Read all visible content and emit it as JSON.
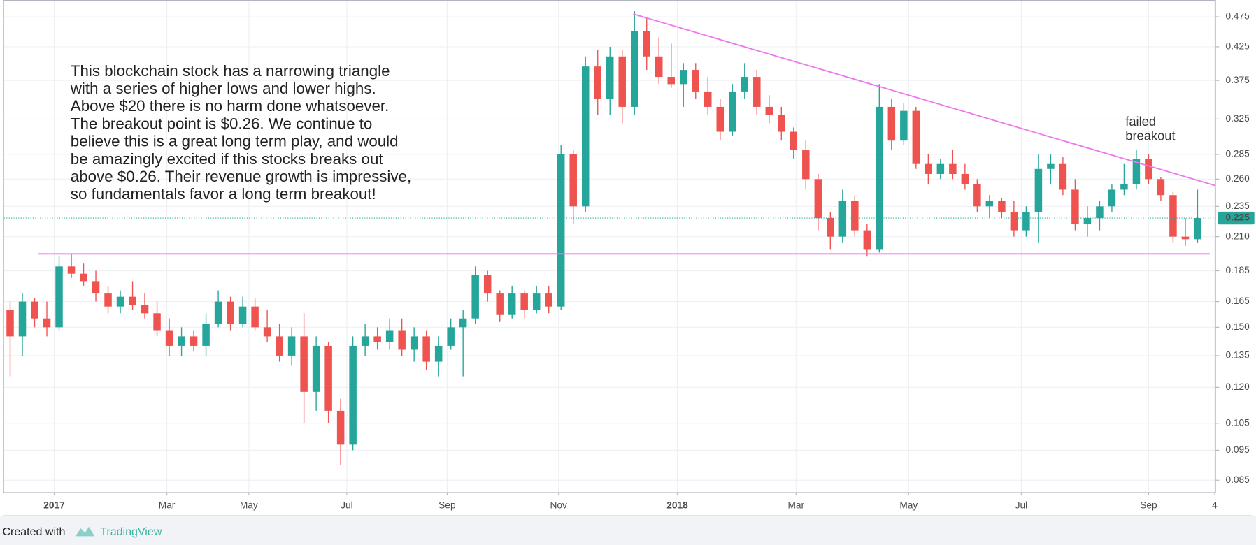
{
  "chart_data": {
    "type": "candlestick",
    "x": [
      0,
      1,
      2,
      3,
      4,
      5,
      6,
      7,
      8,
      9,
      10,
      11,
      12,
      13,
      14,
      15,
      16,
      17,
      18,
      19,
      20,
      21,
      22,
      23,
      24,
      25,
      26,
      27,
      28,
      29,
      30,
      31,
      32,
      33,
      34,
      35,
      36,
      37,
      38,
      39,
      40,
      41,
      42,
      43,
      44,
      45,
      46,
      47,
      48,
      49,
      50,
      51,
      52,
      53,
      54,
      55,
      56,
      57,
      58,
      59,
      60,
      61,
      62,
      63,
      64,
      65,
      66,
      67,
      68,
      69,
      70,
      71,
      72,
      73,
      74,
      75,
      76,
      77,
      78,
      79,
      80,
      81,
      82,
      83,
      84,
      85,
      86,
      87,
      88,
      89,
      90,
      91,
      92,
      93,
      94,
      95,
      96,
      97
    ],
    "open": [
      0.16,
      0.145,
      0.165,
      0.155,
      0.15,
      0.188,
      0.183,
      0.178,
      0.17,
      0.162,
      0.168,
      0.163,
      0.158,
      0.148,
      0.14,
      0.145,
      0.14,
      0.152,
      0.165,
      0.152,
      0.162,
      0.15,
      0.145,
      0.135,
      0.145,
      0.118,
      0.14,
      0.11,
      0.097,
      0.14,
      0.145,
      0.142,
      0.148,
      0.138,
      0.145,
      0.132,
      0.14,
      0.15,
      0.155,
      0.182,
      0.17,
      0.157,
      0.17,
      0.16,
      0.17,
      0.162,
      0.285,
      0.235,
      0.395,
      0.35,
      0.41,
      0.34,
      0.45,
      0.41,
      0.38,
      0.37,
      0.39,
      0.36,
      0.34,
      0.31,
      0.36,
      0.38,
      0.34,
      0.33,
      0.31,
      0.29,
      0.26,
      0.225,
      0.21,
      0.24,
      0.215,
      0.2,
      0.34,
      0.3,
      0.335,
      0.275,
      0.265,
      0.275,
      0.265,
      0.255,
      0.235,
      0.24,
      0.23,
      0.215,
      0.23,
      0.27,
      0.275,
      0.25,
      0.22,
      0.225,
      0.235,
      0.25,
      0.255,
      0.28,
      0.26,
      0.245,
      0.21,
      0.208
    ],
    "high": [
      0.165,
      0.17,
      0.167,
      0.165,
      0.195,
      0.197,
      0.19,
      0.185,
      0.175,
      0.172,
      0.178,
      0.17,
      0.165,
      0.155,
      0.15,
      0.148,
      0.158,
      0.172,
      0.168,
      0.168,
      0.167,
      0.16,
      0.152,
      0.15,
      0.158,
      0.145,
      0.142,
      0.115,
      0.145,
      0.152,
      0.15,
      0.155,
      0.155,
      0.15,
      0.148,
      0.145,
      0.155,
      0.16,
      0.188,
      0.185,
      0.172,
      0.175,
      0.172,
      0.175,
      0.175,
      0.295,
      0.29,
      0.41,
      0.42,
      0.425,
      0.42,
      0.485,
      0.475,
      0.44,
      0.43,
      0.4,
      0.4,
      0.38,
      0.35,
      0.37,
      0.4,
      0.39,
      0.355,
      0.34,
      0.315,
      0.3,
      0.265,
      0.23,
      0.25,
      0.245,
      0.22,
      0.37,
      0.35,
      0.345,
      0.34,
      0.285,
      0.28,
      0.29,
      0.275,
      0.26,
      0.245,
      0.242,
      0.24,
      0.235,
      0.285,
      0.285,
      0.282,
      0.26,
      0.235,
      0.24,
      0.255,
      0.275,
      0.29,
      0.285,
      0.262,
      0.248,
      0.225,
      0.25
    ],
    "low": [
      0.125,
      0.135,
      0.15,
      0.145,
      0.148,
      0.18,
      0.175,
      0.165,
      0.158,
      0.158,
      0.16,
      0.155,
      0.145,
      0.135,
      0.135,
      0.137,
      0.135,
      0.15,
      0.148,
      0.15,
      0.148,
      0.142,
      0.132,
      0.13,
      0.105,
      0.11,
      0.105,
      0.09,
      0.095,
      0.135,
      0.138,
      0.138,
      0.135,
      0.132,
      0.128,
      0.125,
      0.138,
      0.125,
      0.152,
      0.165,
      0.153,
      0.155,
      0.155,
      0.158,
      0.158,
      0.16,
      0.22,
      0.23,
      0.33,
      0.33,
      0.32,
      0.33,
      0.39,
      0.37,
      0.365,
      0.34,
      0.35,
      0.33,
      0.3,
      0.305,
      0.35,
      0.33,
      0.32,
      0.3,
      0.28,
      0.25,
      0.215,
      0.2,
      0.205,
      0.21,
      0.195,
      0.198,
      0.29,
      0.295,
      0.27,
      0.255,
      0.26,
      0.26,
      0.25,
      0.23,
      0.225,
      0.225,
      0.21,
      0.21,
      0.205,
      0.255,
      0.245,
      0.215,
      0.21,
      0.215,
      0.23,
      0.245,
      0.25,
      0.255,
      0.24,
      0.205,
      0.203,
      0.205
    ],
    "close": [
      0.145,
      0.165,
      0.155,
      0.15,
      0.188,
      0.183,
      0.178,
      0.17,
      0.162,
      0.168,
      0.163,
      0.158,
      0.148,
      0.14,
      0.145,
      0.14,
      0.152,
      0.165,
      0.152,
      0.162,
      0.15,
      0.145,
      0.135,
      0.145,
      0.118,
      0.14,
      0.11,
      0.097,
      0.14,
      0.145,
      0.142,
      0.148,
      0.138,
      0.145,
      0.132,
      0.14,
      0.15,
      0.155,
      0.182,
      0.17,
      0.157,
      0.17,
      0.16,
      0.17,
      0.162,
      0.285,
      0.235,
      0.395,
      0.35,
      0.41,
      0.34,
      0.45,
      0.41,
      0.38,
      0.37,
      0.39,
      0.36,
      0.34,
      0.31,
      0.36,
      0.38,
      0.34,
      0.33,
      0.31,
      0.29,
      0.26,
      0.225,
      0.21,
      0.24,
      0.215,
      0.2,
      0.34,
      0.3,
      0.335,
      0.275,
      0.265,
      0.275,
      0.265,
      0.255,
      0.235,
      0.24,
      0.23,
      0.215,
      0.23,
      0.27,
      0.275,
      0.25,
      0.22,
      0.225,
      0.235,
      0.25,
      0.255,
      0.28,
      0.26,
      0.245,
      0.21,
      0.208,
      0.225
    ],
    "up_color": "#26a69a",
    "down_color": "#ef5350",
    "xlim": [
      -0.5,
      98.5
    ],
    "xticks": [
      {
        "value": 3.6,
        "label": "2017"
      },
      {
        "value": 12.8,
        "label": "Mar"
      },
      {
        "value": 19.5,
        "label": "May"
      },
      {
        "value": 27.5,
        "label": "Jul"
      },
      {
        "value": 35.7,
        "label": "Sep"
      },
      {
        "value": 44.8,
        "label": "Nov"
      },
      {
        "value": 54.5,
        "label": "2018"
      },
      {
        "value": 64.2,
        "label": "Mar"
      },
      {
        "value": 73.4,
        "label": "May"
      },
      {
        "value": 82.6,
        "label": "Jul"
      },
      {
        "value": 93.0,
        "label": "Sep"
      },
      {
        "value": 98.4,
        "label": "4"
      }
    ],
    "ylim": [
      0.0813,
      0.5056
    ],
    "log": true,
    "grid": true,
    "yticks": [
      0.085,
      0.095,
      0.105,
      {
        "value": 0.12,
        "label": "0.120"
      },
      0.135,
      {
        "value": 0.15,
        "label": "0.150"
      },
      0.165,
      0.185,
      {
        "value": 0.21,
        "label": "0.210"
      },
      0.235,
      {
        "value": 0.26,
        "label": "0.260"
      },
      0.285,
      0.325,
      0.375,
      0.425,
      0.475
    ],
    "last_price": 0.225,
    "lines": [
      {
        "x": [
          50.9,
          98.4
        ],
        "y": [
          0.48,
          0.254
        ],
        "color": "#ee77ee"
      },
      {
        "x": [
          2.3,
          98.0
        ],
        "y": [
          0.197,
          0.197
        ],
        "color": "#ee77ee"
      }
    ],
    "note": [
      "This blockchain stock has a narrowing triangle",
      "with a series of higher lows and lower highs.",
      "Above $20 there is no harm done whatsoever.",
      "The breakout point is $0.26. We continue to",
      "believe this is a great long term play, and would",
      "be amazingly excited if this stocks breaks out",
      "above $0.26. Their revenue growth is impressive,",
      "so fundamentals favor a long term breakout!"
    ],
    "callout": [
      "failed",
      "breakout"
    ]
  },
  "footer": {
    "created": "Created with",
    "brand": "TradingView"
  }
}
